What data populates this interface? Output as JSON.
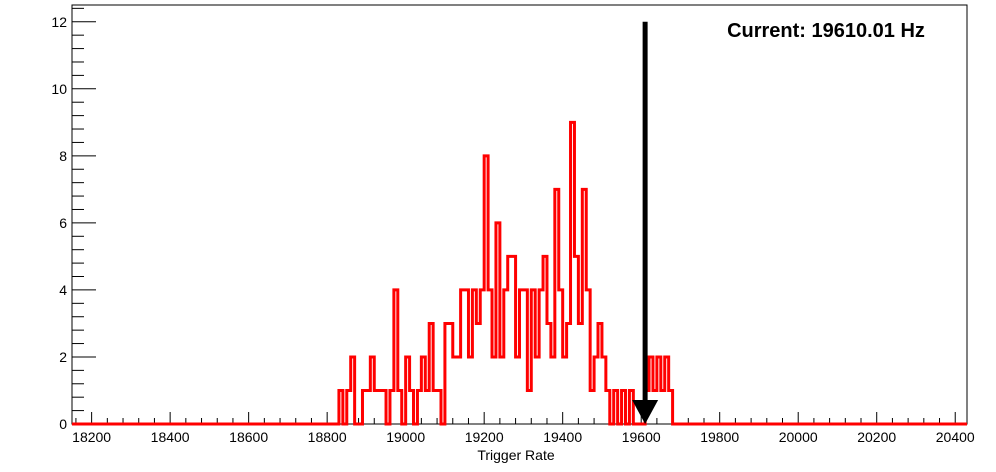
{
  "chart_data": {
    "type": "histogram",
    "title": "",
    "xlabel": "Trigger Rate",
    "ylabel": "",
    "xlim": [
      18150,
      20430
    ],
    "ylim": [
      0,
      12.5
    ],
    "x_ticks": [
      18200,
      18400,
      18600,
      18800,
      19000,
      19200,
      19400,
      19600,
      19800,
      20000,
      20200,
      20400
    ],
    "y_ticks": [
      0,
      2,
      4,
      6,
      8,
      10,
      12
    ],
    "bin_width": 10,
    "series": [
      {
        "color": "#ff0000",
        "bins": [
          [
            18830,
            1
          ],
          [
            18840,
            0
          ],
          [
            18850,
            1
          ],
          [
            18860,
            2
          ],
          [
            18870,
            0
          ],
          [
            18880,
            0
          ],
          [
            18890,
            1
          ],
          [
            18900,
            1
          ],
          [
            18910,
            2
          ],
          [
            18920,
            1
          ],
          [
            18930,
            1
          ],
          [
            18940,
            1
          ],
          [
            18950,
            0
          ],
          [
            18960,
            1
          ],
          [
            18970,
            4
          ],
          [
            18980,
            1
          ],
          [
            18990,
            0
          ],
          [
            19000,
            2
          ],
          [
            19010,
            1
          ],
          [
            19020,
            0
          ],
          [
            19030,
            1
          ],
          [
            19040,
            2
          ],
          [
            19050,
            1
          ],
          [
            19060,
            3
          ],
          [
            19070,
            1
          ],
          [
            19080,
            1
          ],
          [
            19090,
            0
          ],
          [
            19100,
            3
          ],
          [
            19110,
            3
          ],
          [
            19120,
            2
          ],
          [
            19130,
            2
          ],
          [
            19140,
            4
          ],
          [
            19150,
            4
          ],
          [
            19160,
            2
          ],
          [
            19170,
            4
          ],
          [
            19180,
            3
          ],
          [
            19190,
            4
          ],
          [
            19200,
            8
          ],
          [
            19210,
            4
          ],
          [
            19220,
            2
          ],
          [
            19230,
            6
          ],
          [
            19240,
            2
          ],
          [
            19250,
            4
          ],
          [
            19260,
            5
          ],
          [
            19270,
            5
          ],
          [
            19280,
            2
          ],
          [
            19290,
            4
          ],
          [
            19300,
            4
          ],
          [
            19310,
            1
          ],
          [
            19320,
            4
          ],
          [
            19330,
            2
          ],
          [
            19340,
            4
          ],
          [
            19350,
            5
          ],
          [
            19360,
            3
          ],
          [
            19370,
            2
          ],
          [
            19380,
            7
          ],
          [
            19390,
            4
          ],
          [
            19400,
            2
          ],
          [
            19410,
            3
          ],
          [
            19420,
            9
          ],
          [
            19430,
            5
          ],
          [
            19440,
            3
          ],
          [
            19450,
            7
          ],
          [
            19460,
            4
          ],
          [
            19470,
            1
          ],
          [
            19480,
            2
          ],
          [
            19490,
            3
          ],
          [
            19500,
            2
          ],
          [
            19510,
            1
          ],
          [
            19520,
            0
          ],
          [
            19530,
            1
          ],
          [
            19540,
            0
          ],
          [
            19550,
            1
          ],
          [
            19560,
            0
          ],
          [
            19570,
            1
          ],
          [
            19580,
            0
          ],
          [
            19590,
            0
          ],
          [
            19600,
            0
          ],
          [
            19610,
            1
          ],
          [
            19620,
            2
          ],
          [
            19630,
            1
          ],
          [
            19640,
            2
          ],
          [
            19650,
            1
          ],
          [
            19660,
            2
          ],
          [
            19670,
            1
          ],
          [
            19680,
            0
          ]
        ]
      }
    ],
    "marker": {
      "x": 19610.01,
      "y_from": 12,
      "y_to": 0,
      "label": "Current: 19610.01 Hz"
    }
  }
}
